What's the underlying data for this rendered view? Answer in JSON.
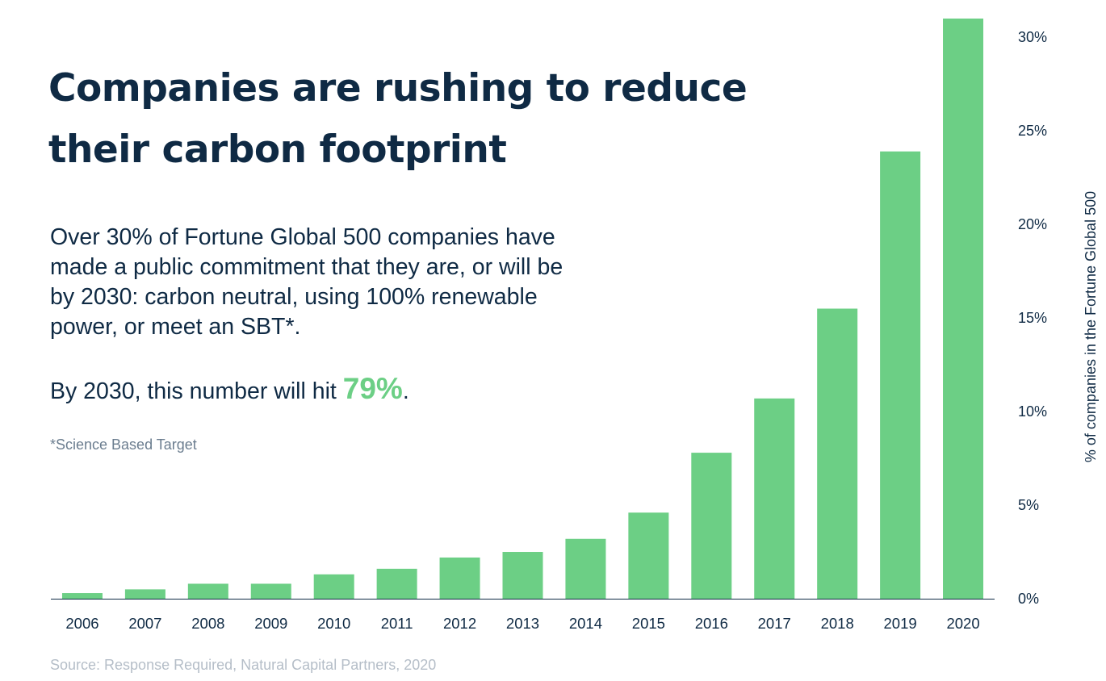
{
  "headline": "Companies are rushing to reduce their carbon footprint",
  "body": "Over 30% of Fortune Global 500 companies have made a public commitment that they are, or will be by 2030: carbon neutral, using 100% renewable power, or meet an SBT*.",
  "callout": {
    "prefix": "By 2030, this number will hit ",
    "highlight": "79%",
    "suffix": "."
  },
  "footnote": "*Science Based Target",
  "source": "Source: Response Required, Natural Capital Partners, 2020",
  "colors": {
    "bar": "#6ccf85",
    "text": "#0f2a44",
    "highlight": "#6ccf85"
  },
  "chart_data": {
    "type": "bar",
    "categories": [
      "2006",
      "2007",
      "2008",
      "2009",
      "2010",
      "2011",
      "2012",
      "2013",
      "2014",
      "2015",
      "2016",
      "2017",
      "2018",
      "2019",
      "2020"
    ],
    "values": [
      0.3,
      0.5,
      0.8,
      0.8,
      1.3,
      1.6,
      2.2,
      2.5,
      3.2,
      4.6,
      7.8,
      10.7,
      15.5,
      23.9,
      31.0
    ],
    "ylabel": "% of companies in the Fortune Global 500",
    "ylim": [
      0,
      31
    ],
    "yticks": [
      0,
      5,
      10,
      15,
      20,
      25,
      30
    ],
    "ytick_labels": [
      "0%",
      "5%",
      "10%",
      "15%",
      "20%",
      "25%",
      "30%"
    ],
    "yaxis_position": "right",
    "grid": false
  }
}
